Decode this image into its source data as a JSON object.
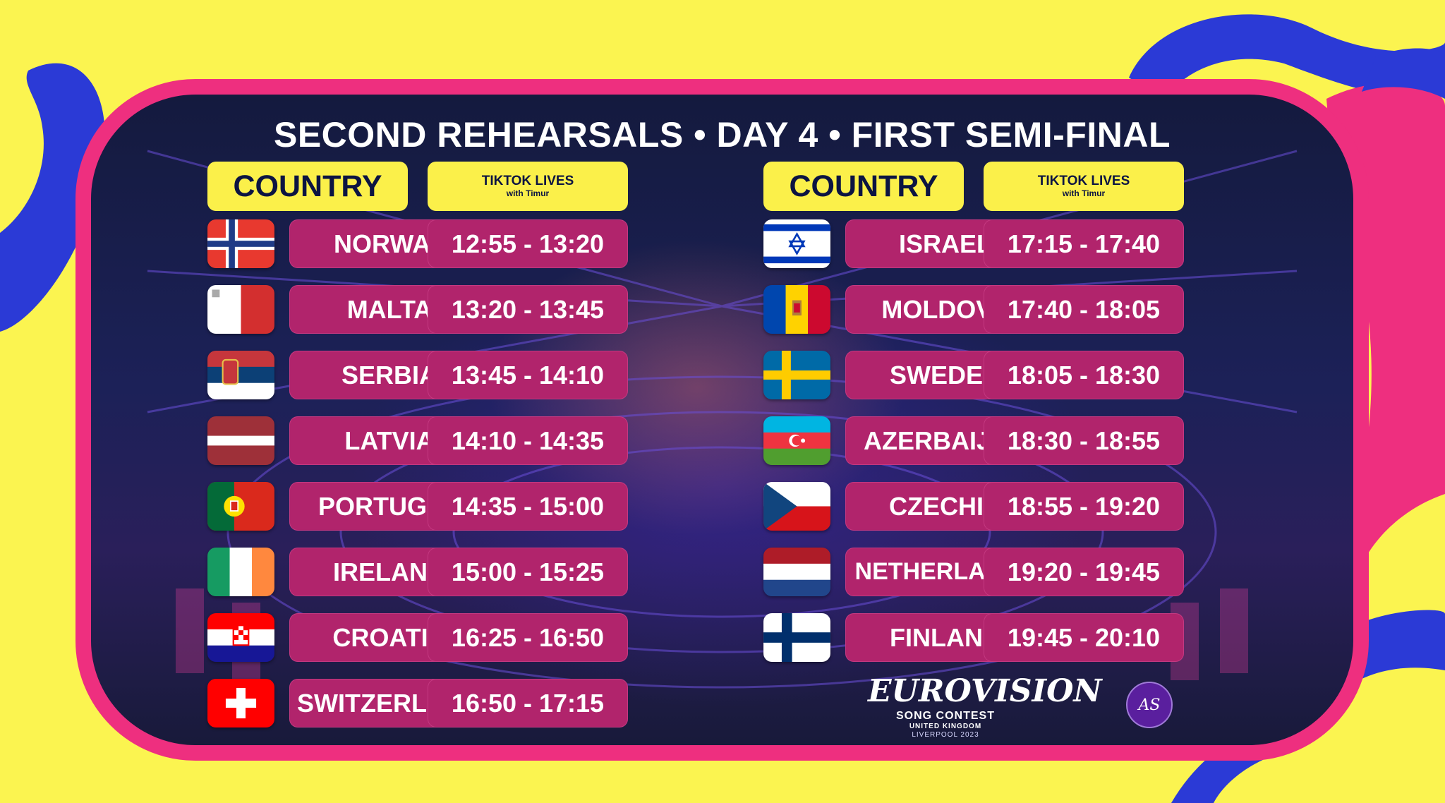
{
  "title": "SECOND REHEARSALS • DAY 4 • FIRST SEMI-FINAL",
  "headers": {
    "country": "COUNTRY",
    "tiktok": "TIKTOK LIVES",
    "tiktok_sub": "with Timur"
  },
  "left_column": [
    {
      "country": "NORWAY",
      "time": "12:55 - 13:20",
      "flag": "norway-flag"
    },
    {
      "country": "MALTA",
      "time": "13:20 - 13:45",
      "flag": "malta-flag"
    },
    {
      "country": "SERBIA",
      "time": "13:45 - 14:10",
      "flag": "serbia-flag"
    },
    {
      "country": "LATVIA",
      "time": "14:10 - 14:35",
      "flag": "latvia-flag"
    },
    {
      "country": "PORTUGAL",
      "time": "14:35 - 15:00",
      "flag": "portugal-flag"
    },
    {
      "country": "IRELAND",
      "time": "15:00 - 15:25",
      "flag": "ireland-flag"
    },
    {
      "country": "CROATIA",
      "time": "16:25 - 16:50",
      "flag": "croatia-flag"
    },
    {
      "country": "SWITZERLAND",
      "time": "16:50 - 17:15",
      "flag": "switzerland-flag"
    }
  ],
  "right_column": [
    {
      "country": "ISRAEL",
      "time": "17:15 - 17:40",
      "flag": "israel-flag"
    },
    {
      "country": "MOLDOVA",
      "time": "17:40 - 18:05",
      "flag": "moldova-flag"
    },
    {
      "country": "SWEDEN",
      "time": "18:05 - 18:30",
      "flag": "sweden-flag"
    },
    {
      "country": "AZERBAIJAN",
      "time": "18:30 - 18:55",
      "flag": "azerbaijan-flag"
    },
    {
      "country": "CZECHIA",
      "time": "18:55 - 19:20",
      "flag": "czechia-flag"
    },
    {
      "country": "NETHERLANDS",
      "time": "19:20 - 19:45",
      "flag": "netherlands-flag"
    },
    {
      "country": "FINLAND",
      "time": "19:45 - 20:10",
      "flag": "finland-flag"
    }
  ],
  "logo": {
    "wordmark": "EUROVISION",
    "line1": "SONG CONTEST",
    "line2": "UNITED KINGDOM",
    "line3": "LIVERPOOL 2023"
  },
  "badge": "AS",
  "colors": {
    "background_yellow": "#fbf450",
    "frame_pink": "#ee2f7f",
    "pill_magenta": "#b1246c",
    "header_yellow": "#fbf04a",
    "header_text_navy": "#0c1442",
    "deco_blue": "#2b3ad6"
  }
}
